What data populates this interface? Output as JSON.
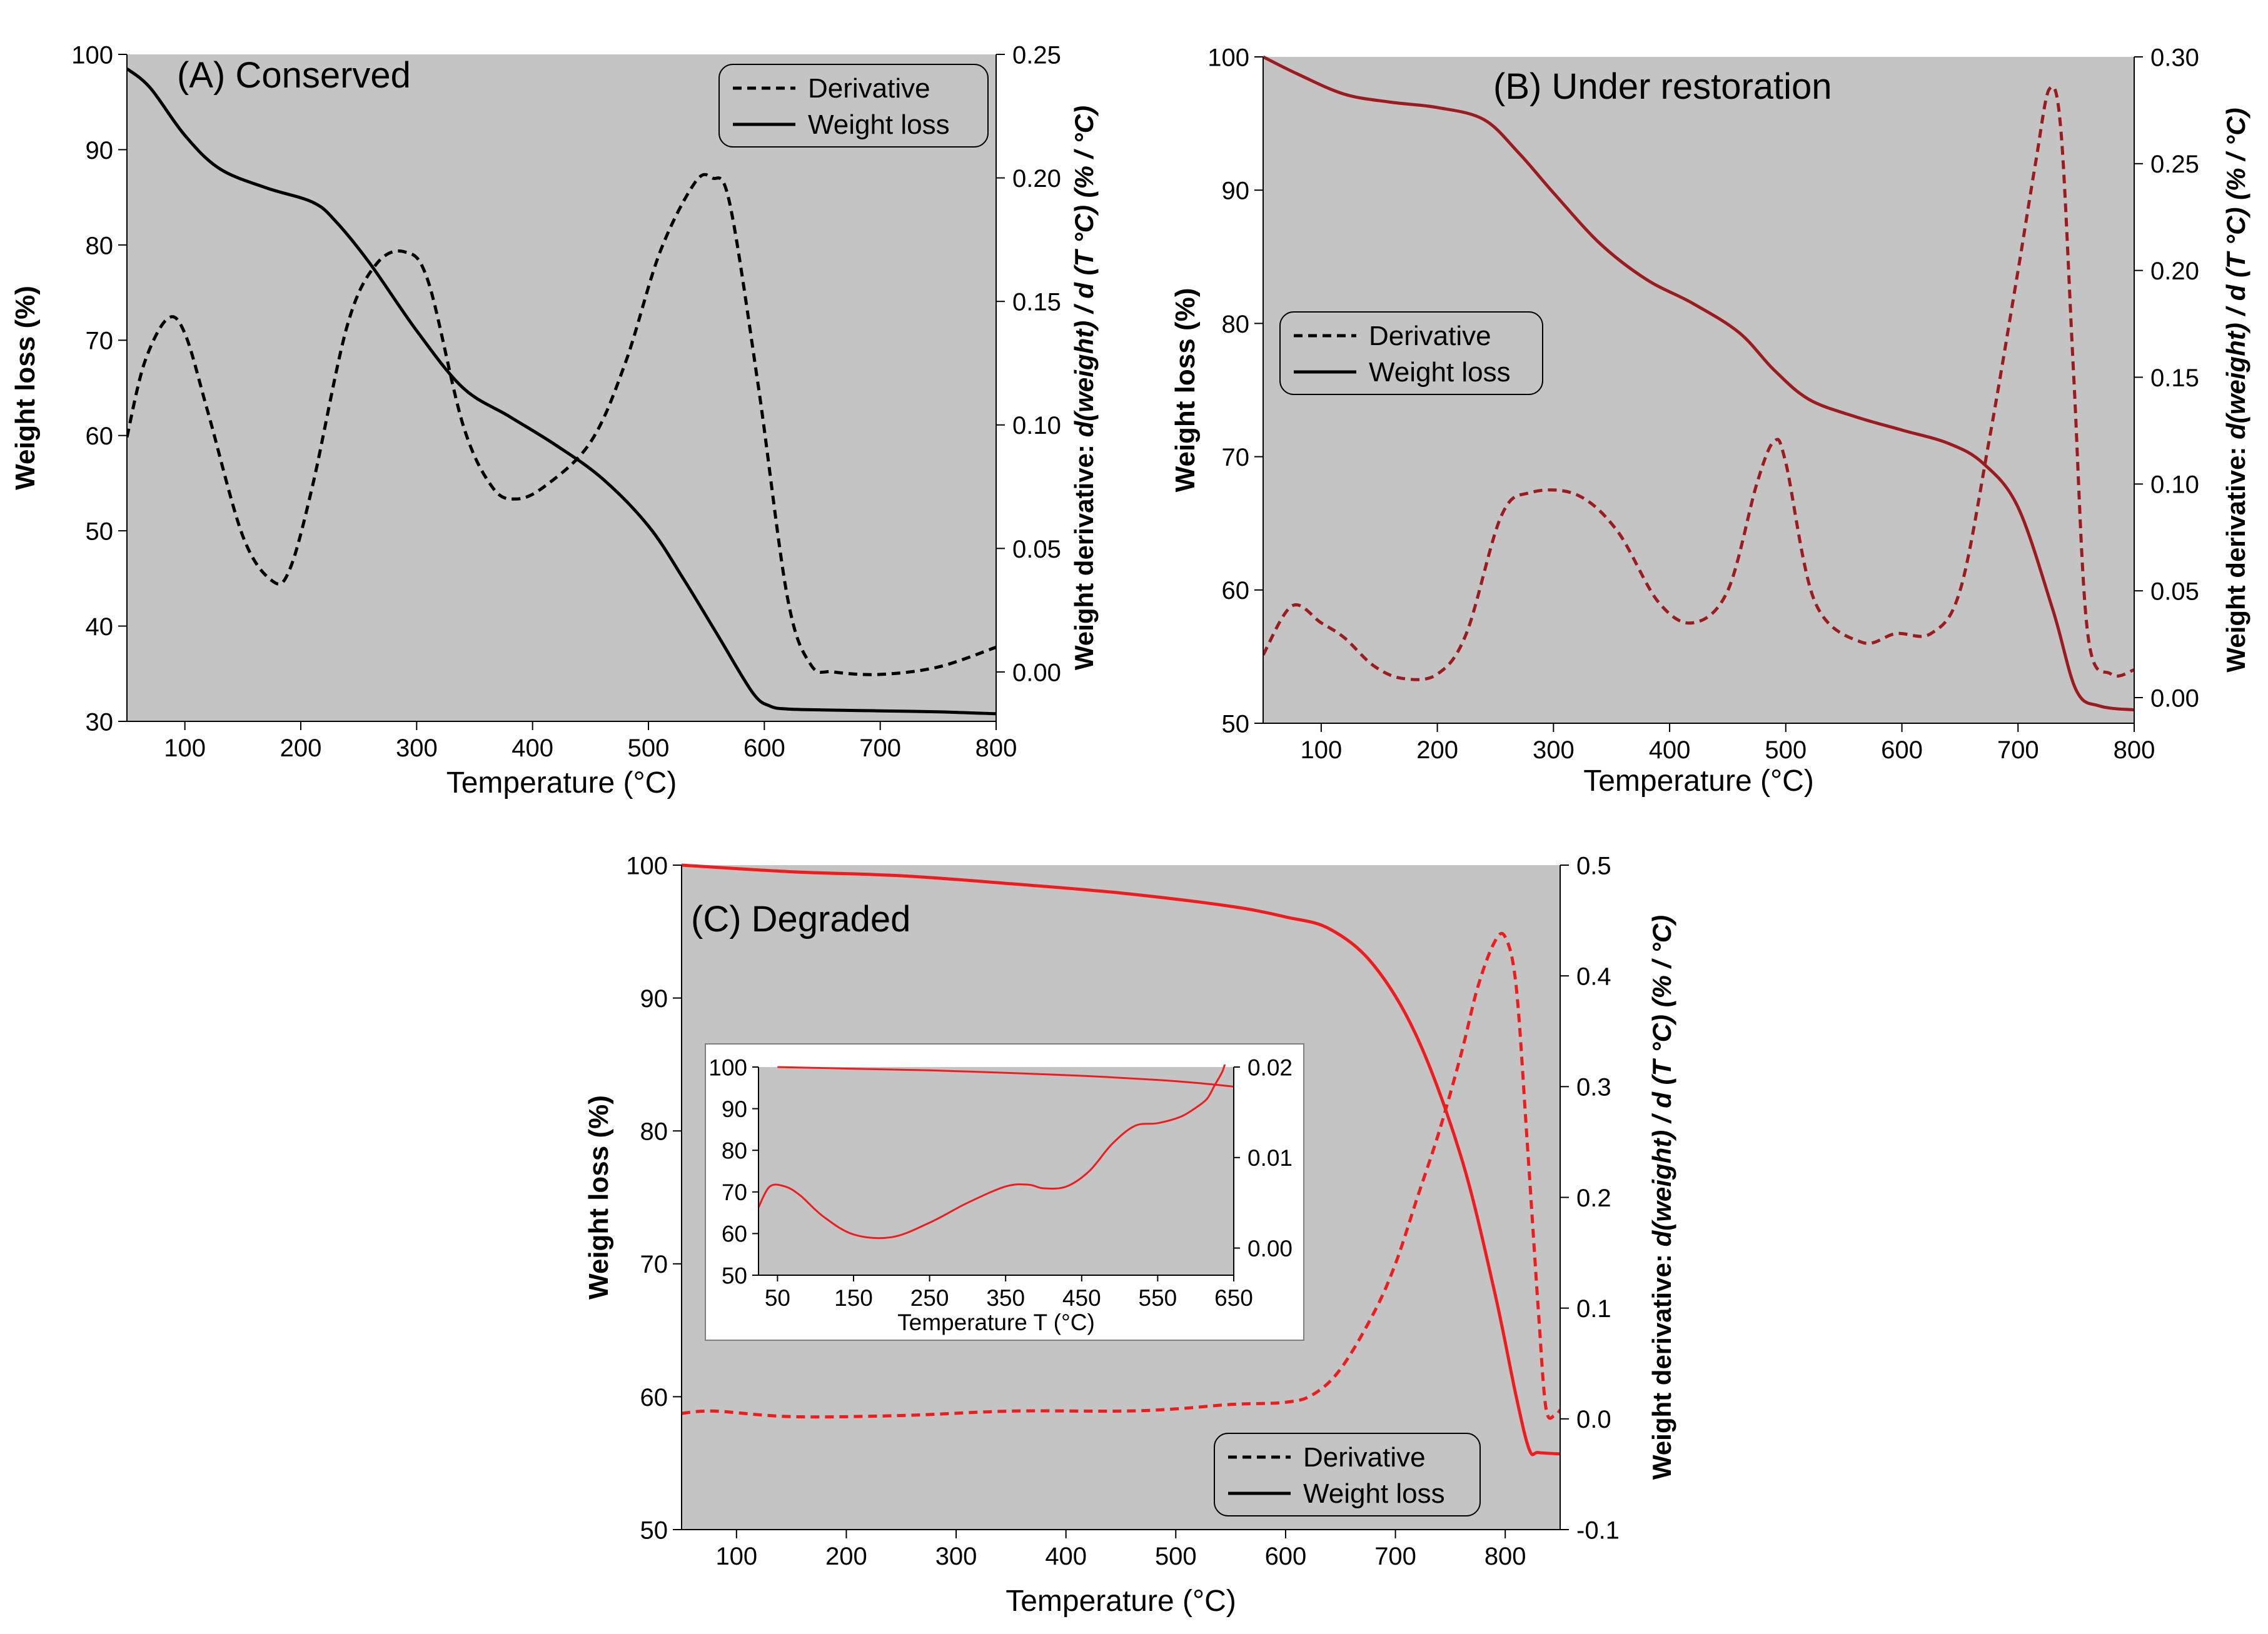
{
  "figure": {
    "description_free": true
  },
  "chart_data": [
    {
      "id": "A",
      "type": "line",
      "title": "(A) Conserved",
      "xlabel": "Temperature (°C)",
      "ylabel": "Weight  loss (%)",
      "y2label_plain": "Weight derivative: ",
      "y2label_italic": "d(weight) / d (T °C) (% / °C)",
      "xlim": [
        50,
        800
      ],
      "ylim": [
        30,
        100
      ],
      "y2lim": [
        -0.02,
        0.25
      ],
      "xticks": [
        100,
        200,
        300,
        400,
        500,
        600,
        700,
        800
      ],
      "yticks": [
        30,
        40,
        50,
        60,
        70,
        80,
        90,
        100
      ],
      "y2ticks": [
        0.0,
        0.05,
        0.1,
        0.15,
        0.2,
        0.25
      ],
      "y2decimals": 2,
      "legend": [
        "Derivative",
        "Weight loss"
      ],
      "legend_position": "top-right",
      "color": "#000000",
      "grid": false,
      "series": [
        {
          "name": "Weight loss",
          "axis": "left",
          "style": "solid",
          "x": [
            50,
            70,
            100,
            130,
            170,
            210,
            230,
            260,
            300,
            340,
            380,
            420,
            460,
            500,
            530,
            560,
            590,
            605,
            620,
            650,
            700,
            750,
            800
          ],
          "y": [
            98.5,
            96.5,
            91.5,
            88,
            86,
            84.5,
            82.5,
            78,
            71,
            65,
            62,
            59,
            55.5,
            50.5,
            45,
            39,
            33,
            31.6,
            31.3,
            31.2,
            31.1,
            31,
            30.8
          ]
        },
        {
          "name": "Derivative",
          "axis": "right",
          "style": "dashed",
          "x": [
            50,
            65,
            85,
            100,
            120,
            150,
            175,
            190,
            210,
            240,
            265,
            290,
            310,
            340,
            365,
            385,
            410,
            450,
            480,
            510,
            540,
            555,
            570,
            595,
            620,
            640,
            660,
            700,
            750,
            800
          ],
          "y": [
            0.095,
            0.125,
            0.143,
            0.137,
            0.105,
            0.055,
            0.037,
            0.041,
            0.075,
            0.14,
            0.165,
            0.17,
            0.158,
            0.1,
            0.075,
            0.07,
            0.075,
            0.093,
            0.125,
            0.17,
            0.198,
            0.2,
            0.19,
            0.115,
            0.03,
            0.003,
            0.0,
            -0.001,
            0.002,
            0.01
          ]
        }
      ]
    },
    {
      "id": "B",
      "type": "line",
      "title": "(B) Under restoration",
      "xlabel": "Temperature (°C)",
      "ylabel": "Weight  loss (%)",
      "y2label_plain": "Weight derivative: ",
      "y2label_italic": "d(weight) / d (T °C) (% / °C)",
      "xlim": [
        50,
        800
      ],
      "ylim": [
        50,
        100
      ],
      "y2lim": [
        -0.012,
        0.3
      ],
      "xticks": [
        100,
        200,
        300,
        400,
        500,
        600,
        700,
        800
      ],
      "yticks": [
        50,
        60,
        70,
        80,
        90,
        100
      ],
      "y2ticks": [
        0.0,
        0.05,
        0.1,
        0.15,
        0.2,
        0.25,
        0.3
      ],
      "y2decimals": 2,
      "legend": [
        "Derivative",
        "Weight loss"
      ],
      "legend_position": "middle-left",
      "color": "#9b1b1f",
      "grid": false,
      "series": [
        {
          "name": "Weight loss",
          "axis": "left",
          "style": "solid",
          "x": [
            50,
            80,
            120,
            160,
            200,
            240,
            270,
            300,
            340,
            380,
            420,
            460,
            490,
            520,
            560,
            600,
            640,
            670,
            700,
            730,
            750,
            770,
            800
          ],
          "y": [
            100,
            98.7,
            97.2,
            96.6,
            96.2,
            95.3,
            92.8,
            89.8,
            86,
            83.3,
            81.5,
            79.3,
            76.5,
            74.3,
            73,
            72,
            71,
            69.5,
            66.2,
            58.5,
            52.5,
            51.3,
            51
          ]
        },
        {
          "name": "Derivative",
          "axis": "right",
          "style": "dashed",
          "x": [
            50,
            75,
            100,
            120,
            145,
            170,
            200,
            225,
            255,
            280,
            320,
            355,
            390,
            420,
            450,
            475,
            490,
            500,
            525,
            565,
            595,
            625,
            650,
            675,
            700,
            715,
            727,
            737,
            748,
            760,
            780,
            800
          ],
          "y": [
            0.02,
            0.043,
            0.035,
            0.028,
            0.015,
            0.009,
            0.011,
            0.03,
            0.085,
            0.096,
            0.095,
            0.078,
            0.045,
            0.035,
            0.05,
            0.1,
            0.12,
            0.11,
            0.045,
            0.026,
            0.03,
            0.03,
            0.05,
            0.12,
            0.2,
            0.25,
            0.285,
            0.265,
            0.15,
            0.03,
            0.011,
            0.013
          ]
        }
      ]
    },
    {
      "id": "C",
      "type": "line",
      "title": "(C) Degraded",
      "xlabel": "Temperature (°C)",
      "ylabel": "Weight  loss (%)",
      "y2label_plain": "Weight derivative: ",
      "y2label_italic": "d(weight) / d (T °C) (% / °C)",
      "xlim": [
        50,
        850
      ],
      "ylim": [
        50,
        100
      ],
      "y2lim": [
        -0.1,
        0.5
      ],
      "xticks": [
        100,
        200,
        300,
        400,
        500,
        600,
        700,
        800
      ],
      "yticks": [
        50,
        60,
        70,
        80,
        90,
        100
      ],
      "y2ticks": [
        -0.1,
        0.0,
        0.1,
        0.2,
        0.3,
        0.4,
        0.5
      ],
      "y2decimals": 1,
      "legend": [
        "Derivative",
        "Weight loss"
      ],
      "legend_position": "bottom-right",
      "color": "#ee1c1c",
      "grid": false,
      "series": [
        {
          "name": "Weight loss",
          "axis": "left",
          "style": "solid",
          "x": [
            50,
            150,
            250,
            350,
            450,
            550,
            600,
            640,
            680,
            720,
            760,
            790,
            810,
            822,
            830,
            850
          ],
          "y": [
            100,
            99.5,
            99.2,
            98.6,
            97.9,
            96.9,
            96.1,
            95.2,
            92.5,
            87,
            78,
            68,
            60,
            56,
            55.8,
            55.7
          ]
        },
        {
          "name": "Derivative",
          "axis": "right",
          "style": "dashed",
          "x": [
            50,
            80,
            150,
            250,
            350,
            450,
            500,
            550,
            600,
            625,
            650,
            680,
            700,
            720,
            740,
            760,
            775,
            790,
            800,
            810,
            820,
            830,
            837,
            845,
            850
          ],
          "y": [
            0.005,
            0.007,
            0.002,
            0.003,
            0.007,
            0.007,
            0.009,
            0.013,
            0.015,
            0.022,
            0.045,
            0.095,
            0.14,
            0.2,
            0.26,
            0.33,
            0.39,
            0.43,
            0.435,
            0.39,
            0.25,
            0.1,
            0.01,
            0.003,
            0.008
          ]
        }
      ]
    },
    {
      "id": "C-inset",
      "type": "line",
      "title": "",
      "xlabel": "Temperature T (°C)",
      "ylabel": "",
      "xlim": [
        25,
        650
      ],
      "ylim": [
        50,
        100
      ],
      "y2lim": [
        -0.003,
        0.02
      ],
      "xticks": [
        50,
        150,
        250,
        350,
        450,
        550,
        650
      ],
      "yticks": [
        50,
        60,
        70,
        80,
        90,
        100
      ],
      "y2ticks": [
        0.0,
        0.01,
        0.02
      ],
      "y2decimals": 2,
      "color": "#ee1c1c",
      "grid": false,
      "series": [
        {
          "name": "Weight loss",
          "axis": "left",
          "style": "solid",
          "x": [
            50,
            150,
            250,
            350,
            450,
            550,
            600,
            650
          ],
          "y": [
            100,
            99.6,
            99.2,
            98.6,
            97.9,
            96.9,
            96.2,
            95.3
          ]
        },
        {
          "name": "Derivative",
          "axis": "right",
          "style": "solid",
          "x": [
            25,
            40,
            60,
            80,
            110,
            150,
            200,
            250,
            300,
            350,
            380,
            400,
            430,
            460,
            490,
            520,
            550,
            580,
            600,
            615,
            625,
            635,
            640
          ],
          "y": [
            0.0045,
            0.0068,
            0.0068,
            0.0058,
            0.0035,
            0.0015,
            0.0012,
            0.0028,
            0.005,
            0.0068,
            0.007,
            0.0066,
            0.0068,
            0.0085,
            0.0115,
            0.0135,
            0.0138,
            0.0145,
            0.0155,
            0.0165,
            0.018,
            0.0195,
            0.0208
          ]
        }
      ]
    }
  ]
}
